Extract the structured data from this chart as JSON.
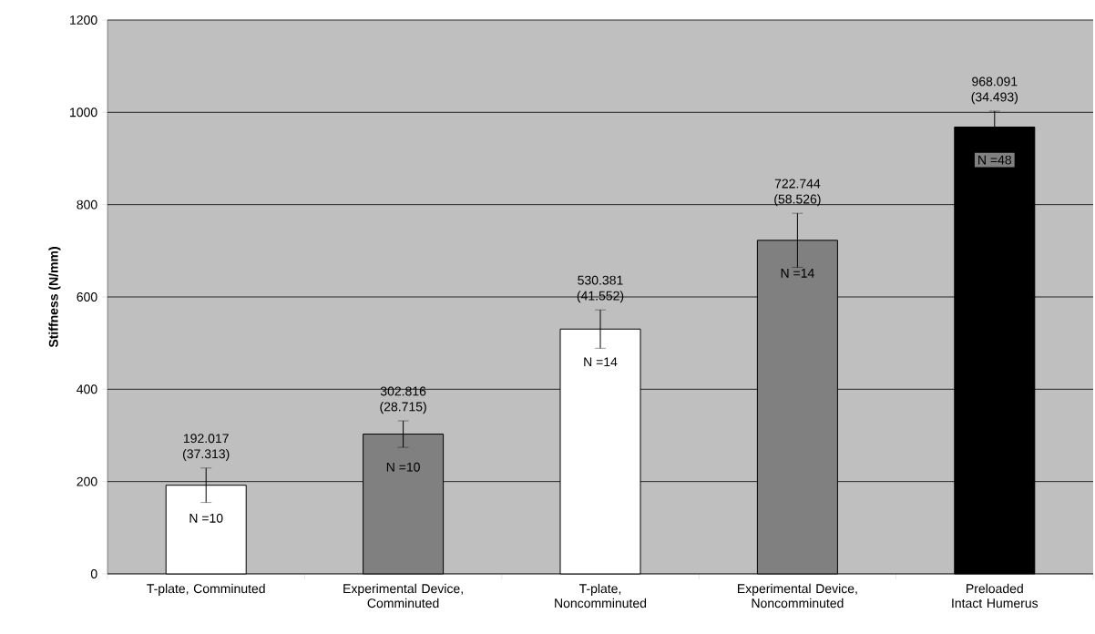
{
  "chart_data": {
    "type": "bar",
    "ylabel": "Stiffness (N/mm)",
    "categories": [
      "T-plate, Comminuted",
      "Experimental Device, Comminuted",
      "T-plate, Noncomminuted",
      "Experimental Device, Noncomminuted",
      "Preloaded Intact Humerus"
    ],
    "values": [
      192.017,
      302.816,
      530.381,
      722.744,
      968.091
    ],
    "errors": [
      37.313,
      28.715,
      41.552,
      58.526,
      34.493
    ],
    "value_labels": [
      "192.017 (37.313)",
      "302.816 (28.715)",
      "530.381 (41.552)",
      "722.744 (58.526)",
      "968.091 (34.493)"
    ],
    "colors": [
      "#ffffff",
      "#808080",
      "#ffffff",
      "#808080",
      "#000000"
    ],
    "ylim": [
      0,
      1200
    ],
    "yticks": [
      0,
      200,
      400,
      600,
      800,
      1000,
      1200
    ],
    "grid": "y",
    "annotations": [
      "N =10",
      "N =10",
      "N =14",
      "N =14",
      "N =48"
    ]
  }
}
